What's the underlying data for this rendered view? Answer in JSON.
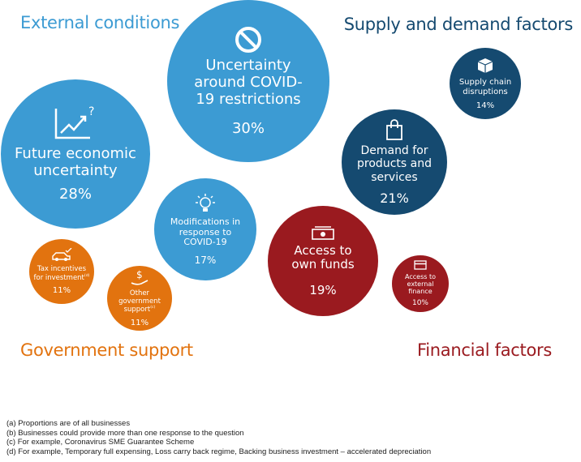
{
  "colors": {
    "external": "#3c9bd3",
    "supply": "#154a70",
    "government": "#e2730f",
    "financial": "#9a1a1f"
  },
  "headings": {
    "external": "External conditions",
    "supply": "Supply and demand factors",
    "government": "Government support",
    "financial": "Financial factors"
  },
  "bubbles": [
    {
      "label": "Future economic uncertainty",
      "value": "28%",
      "icon": "chart-trend-question-icon",
      "group": "external"
    },
    {
      "label": "Uncertainty around COVID-19 restrictions",
      "value": "30%",
      "icon": "prohibited-icon",
      "group": "external"
    },
    {
      "label": "Modifications in response to COVID-19",
      "value": "17%",
      "icon": "lightbulb-gear-icon",
      "group": "external"
    },
    {
      "label": "Supply chain disruptions",
      "value": "14%",
      "icon": "box-icon",
      "group": "supply"
    },
    {
      "label": "Demand for products and services",
      "value": "21%",
      "icon": "shopping-bag-icon",
      "group": "supply"
    },
    {
      "label": "Access to own funds",
      "value": "19%",
      "icon": "cash-icon",
      "group": "financial"
    },
    {
      "label": "Access to external finance",
      "value": "10%",
      "icon": "card-icon",
      "group": "financial"
    },
    {
      "label": "Tax incentives for investment",
      "note": "(d)",
      "value": "11%",
      "icon": "car-check-icon",
      "group": "government"
    },
    {
      "label": "Other government support",
      "note": "(c)",
      "value": "11%",
      "icon": "dollar-hand-icon",
      "group": "government"
    }
  ],
  "notes": [
    "(a)  Proportions are of all businesses",
    "(b)  Businesses could provide more than one response to the question",
    "(c)  For example, Coronavirus SME Guarantee Scheme",
    "(d)  For example, Temporary full expensing, Loss carry back regime, Backing business investment – accelerated depreciation"
  ]
}
